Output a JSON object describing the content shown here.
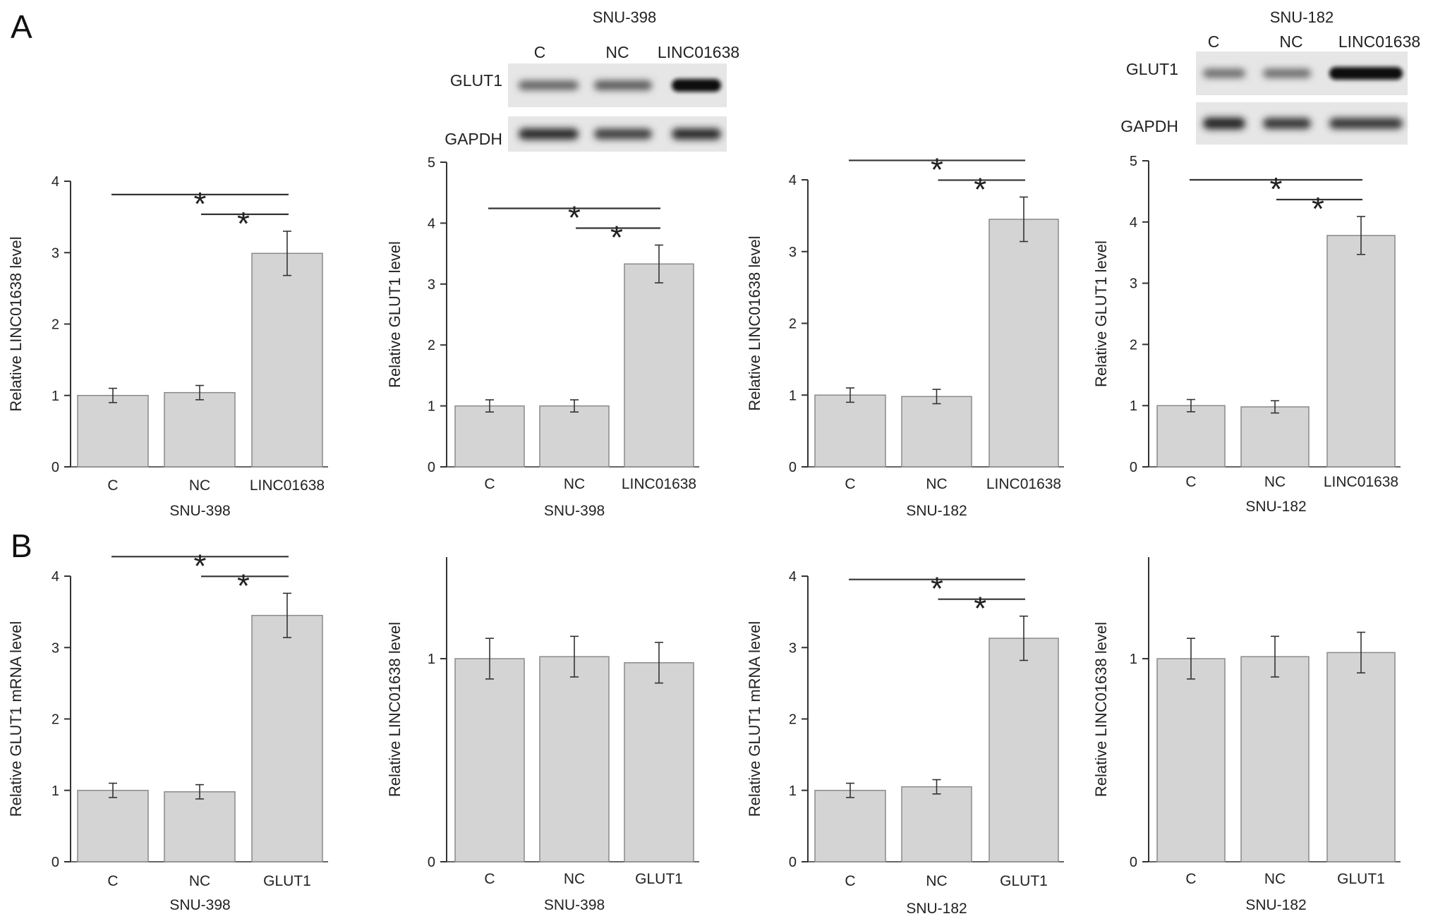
{
  "panels": {
    "A": "A",
    "B": "B"
  },
  "blots": [
    {
      "title": "SNU-398",
      "lanes": [
        "C",
        "NC",
        "LINC01638"
      ],
      "rows": [
        "GLUT1",
        "GAPDH"
      ],
      "intensity": {
        "GLUT1": [
          0.5,
          0.55,
          1.0
        ],
        "GAPDH": [
          0.8,
          0.7,
          0.8
        ]
      }
    },
    {
      "title": "SNU-182",
      "lanes": [
        "C",
        "NC",
        "LINC01638"
      ],
      "rows": [
        "GLUT1",
        "GAPDH"
      ],
      "intensity": {
        "GLUT1": [
          0.45,
          0.45,
          1.0
        ],
        "GAPDH": [
          0.85,
          0.75,
          0.75
        ]
      }
    }
  ],
  "chart_data": [
    {
      "type": "bar",
      "ylabel": "Relative LINC01638 level",
      "xlabel": "SNU-398",
      "categories": [
        "C",
        "NC",
        "LINC01638"
      ],
      "values": [
        1.0,
        1.04,
        2.99
      ],
      "errors": [
        0.1,
        0.1,
        0.31
      ],
      "ylim": [
        0,
        4
      ],
      "yticks": [
        0,
        1,
        2,
        3,
        4
      ],
      "significance": [
        "*",
        "*"
      ]
    },
    {
      "type": "bar",
      "ylabel": "Relative GLUT1 level",
      "xlabel": "SNU-398",
      "categories": [
        "C",
        "NC",
        "LINC01638"
      ],
      "values": [
        1.0,
        1.0,
        3.33
      ],
      "errors": [
        0.1,
        0.1,
        0.31
      ],
      "ylim": [
        0,
        5
      ],
      "yticks": [
        0,
        1,
        2,
        3,
        4,
        5
      ],
      "significance": [
        "*",
        "*"
      ]
    },
    {
      "type": "bar",
      "ylabel": "Relative LINC01638 level",
      "xlabel": "SNU-182",
      "categories": [
        "C",
        "NC",
        "LINC01638"
      ],
      "values": [
        1.0,
        0.98,
        3.45
      ],
      "errors": [
        0.1,
        0.1,
        0.31
      ],
      "ylim": [
        0,
        4
      ],
      "yticks": [
        0,
        1,
        2,
        3,
        4
      ],
      "significance": [
        "*",
        "*"
      ]
    },
    {
      "type": "bar",
      "ylabel": "Relative GLUT1 level",
      "xlabel": "SNU-182",
      "categories": [
        "C",
        "NC",
        "LINC01638"
      ],
      "values": [
        1.0,
        0.98,
        3.78
      ],
      "errors": [
        0.1,
        0.1,
        0.31
      ],
      "ylim": [
        0,
        5
      ],
      "yticks": [
        0,
        1,
        2,
        3,
        4,
        5
      ],
      "significance": [
        "*",
        "*"
      ]
    },
    {
      "type": "bar",
      "ylabel": "Relative GLUT1 mRNA level",
      "xlabel": "SNU-398",
      "categories": [
        "C",
        "NC",
        "GLUT1"
      ],
      "values": [
        1.0,
        0.98,
        3.45
      ],
      "errors": [
        0.1,
        0.1,
        0.31
      ],
      "ylim": [
        0,
        4
      ],
      "yticks": [
        0,
        1,
        2,
        3,
        4
      ],
      "significance": [
        "*",
        "*"
      ]
    },
    {
      "type": "bar",
      "ylabel": "Relative LINC01638 level",
      "xlabel": "SNU-398",
      "categories": [
        "C",
        "NC",
        "GLUT1"
      ],
      "values": [
        1.0,
        1.01,
        0.98
      ],
      "errors": [
        0.1,
        0.1,
        0.1
      ],
      "ylim": [
        0,
        1.5
      ],
      "yticks": [
        0,
        1
      ],
      "significance": []
    },
    {
      "type": "bar",
      "ylabel": "Relative GLUT1 mRNA level",
      "xlabel": "SNU-182",
      "categories": [
        "C",
        "NC",
        "GLUT1"
      ],
      "values": [
        1.0,
        1.05,
        3.13
      ],
      "errors": [
        0.1,
        0.1,
        0.31
      ],
      "ylim": [
        0,
        4
      ],
      "yticks": [
        0,
        1,
        2,
        3,
        4
      ],
      "significance": [
        "*",
        "*"
      ]
    },
    {
      "type": "bar",
      "ylabel": "Relative LINC01638 level",
      "xlabel": "SNU-182",
      "categories": [
        "C",
        "NC",
        "GLUT1"
      ],
      "values": [
        1.0,
        1.01,
        1.03
      ],
      "errors": [
        0.1,
        0.1,
        0.1
      ],
      "ylim": [
        0,
        1.5
      ],
      "yticks": [
        0,
        1
      ],
      "significance": []
    }
  ]
}
